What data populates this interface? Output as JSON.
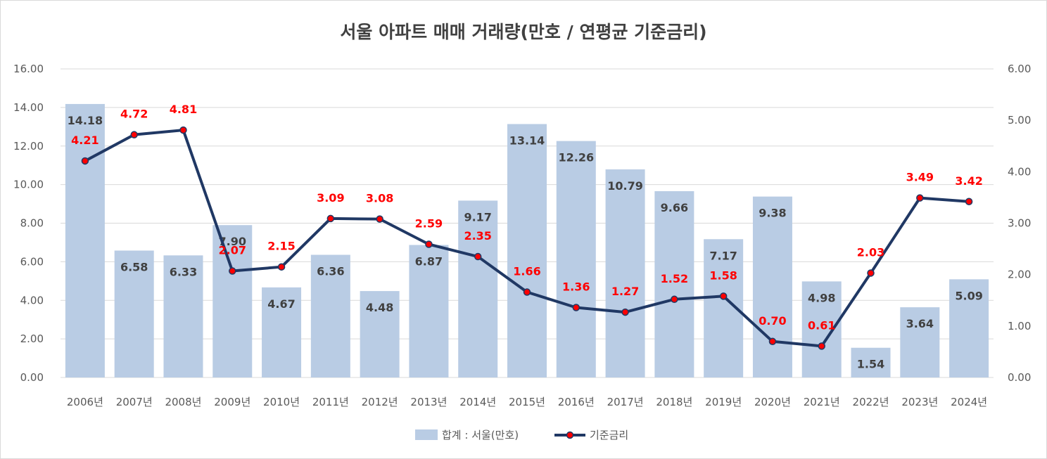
{
  "chart_data": {
    "type": "bar",
    "title": "서울 아파트 매매 거래량(만호 / 연평균 기준금리)",
    "categories": [
      "2006년",
      "2007년",
      "2008년",
      "2009년",
      "2010년",
      "2011년",
      "2012년",
      "2013년",
      "2014년",
      "2015년",
      "2016년",
      "2017년",
      "2018년",
      "2019년",
      "2020년",
      "2021년",
      "2022년",
      "2023년",
      "2024년"
    ],
    "series": [
      {
        "name": "합계 : 서울(만호)",
        "type": "bar",
        "axis": "left",
        "color": "#b9cce4",
        "values": [
          14.18,
          6.58,
          6.33,
          7.9,
          4.67,
          6.36,
          4.48,
          6.87,
          9.17,
          13.14,
          12.26,
          10.79,
          9.66,
          7.17,
          9.38,
          4.98,
          1.54,
          3.64,
          5.09
        ],
        "labels": [
          "14.18",
          "6.58",
          "6.33",
          "7.90",
          "4.67",
          "6.36",
          "4.48",
          "6.87",
          "9.17",
          "13.14",
          "12.26",
          "10.79",
          "9.66",
          "7.17",
          "9.38",
          "4.98",
          "1.54",
          "3.64",
          "5.09"
        ]
      },
      {
        "name": "기준금리",
        "type": "line",
        "axis": "right",
        "color": "#203864",
        "marker_color": "#ff0000",
        "values": [
          4.21,
          4.72,
          4.81,
          2.07,
          2.15,
          3.09,
          3.08,
          2.59,
          2.35,
          1.66,
          1.36,
          1.27,
          1.52,
          1.58,
          0.7,
          0.61,
          2.03,
          3.49,
          3.42
        ],
        "labels": [
          "4.21",
          "4.72",
          "4.81",
          "2.07",
          "2.15",
          "3.09",
          "3.08",
          "2.59",
          "2.35",
          "1.66",
          "1.36",
          "1.27",
          "1.52",
          "1.58",
          "0.70",
          "0.61",
          "2.03",
          "3.49",
          "3.42"
        ]
      }
    ],
    "y_left": {
      "min": 0,
      "max": 16,
      "ticks": [
        "0.00",
        "2.00",
        "4.00",
        "6.00",
        "8.00",
        "10.00",
        "12.00",
        "14.00",
        "16.00"
      ]
    },
    "y_right": {
      "min": 0,
      "max": 6,
      "ticks": [
        "0.00",
        "1.00",
        "2.00",
        "3.00",
        "4.00",
        "5.00",
        "6.00"
      ]
    },
    "grid": true,
    "legend": "bottom",
    "text_color": "#595959",
    "label_color_bar": "#404040",
    "label_color_line": "#ff0000"
  }
}
